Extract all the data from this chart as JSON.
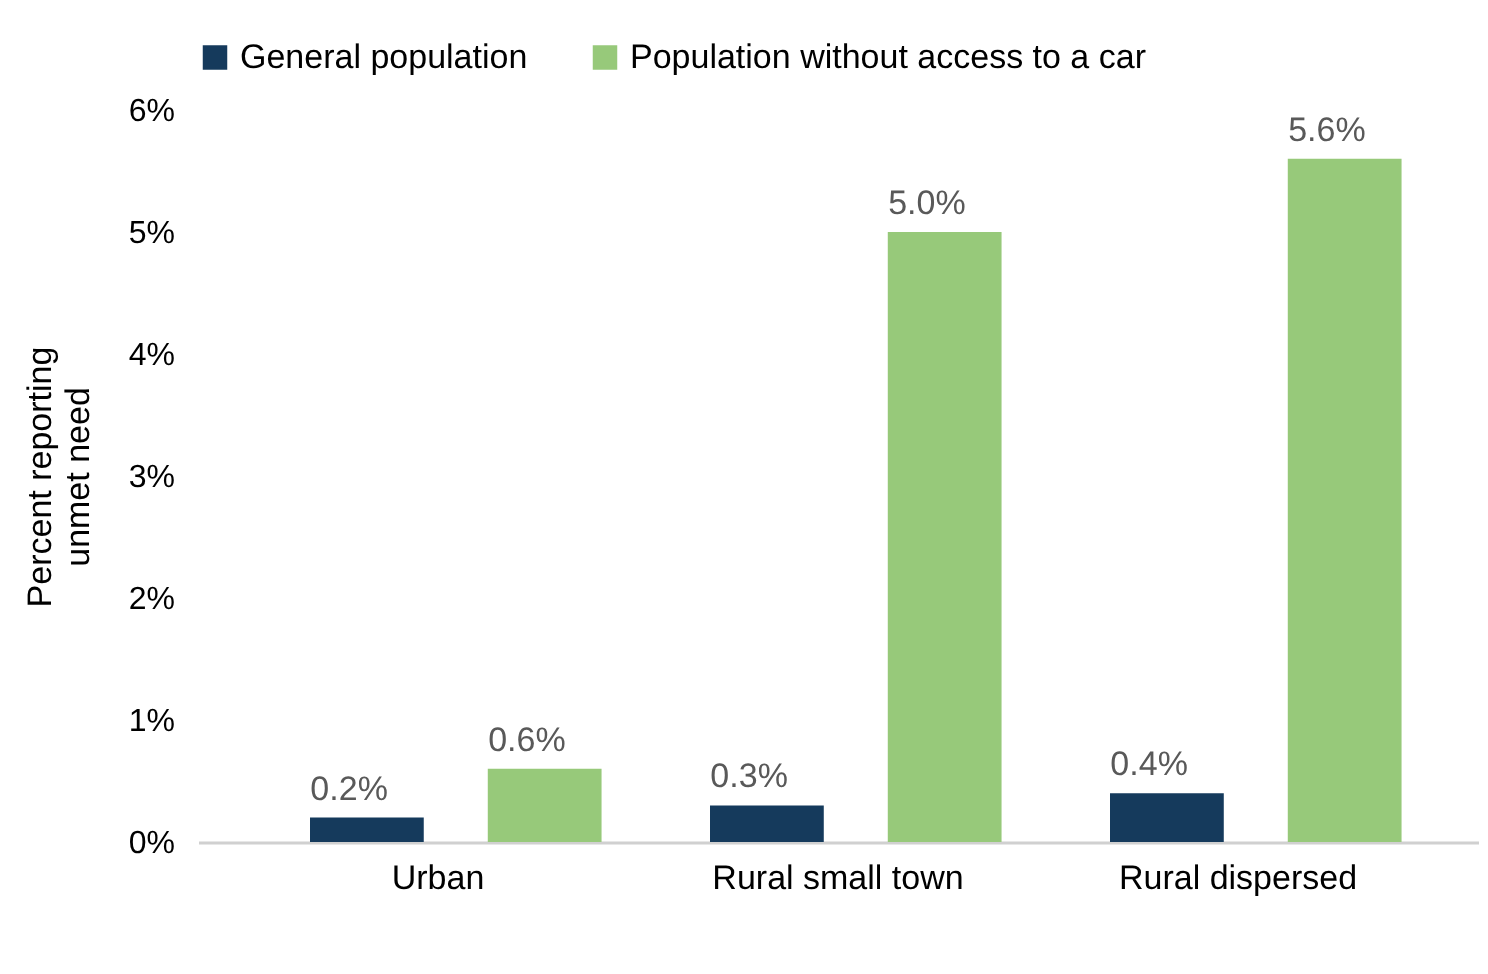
{
  "chart_data": {
    "type": "bar",
    "ylabel": "Percent reporting unmet need",
    "categories": [
      "Urban",
      "Rural small town",
      "Rural dispersed"
    ],
    "series": [
      {
        "name": "General population",
        "color": "#153a5c",
        "values": [
          0.2,
          0.3,
          0.4
        ],
        "value_labels": [
          "0.2%",
          "0.3%",
          "0.4%"
        ]
      },
      {
        "name": "Population without access to a car",
        "color": "#97c97a",
        "values": [
          0.6,
          5.0,
          5.6
        ],
        "value_labels": [
          "0.6%",
          "5.0%",
          "5.6%"
        ]
      }
    ],
    "ylim": [
      0,
      6
    ],
    "yticks": [
      {
        "value": 0,
        "label": "0%"
      },
      {
        "value": 1,
        "label": "1%"
      },
      {
        "value": 2,
        "label": "2%"
      },
      {
        "value": 3,
        "label": "3%"
      },
      {
        "value": 4,
        "label": "4%"
      },
      {
        "value": 5,
        "label": "5%"
      },
      {
        "value": 6,
        "label": "6%"
      }
    ],
    "grid": false,
    "legend": "top"
  }
}
